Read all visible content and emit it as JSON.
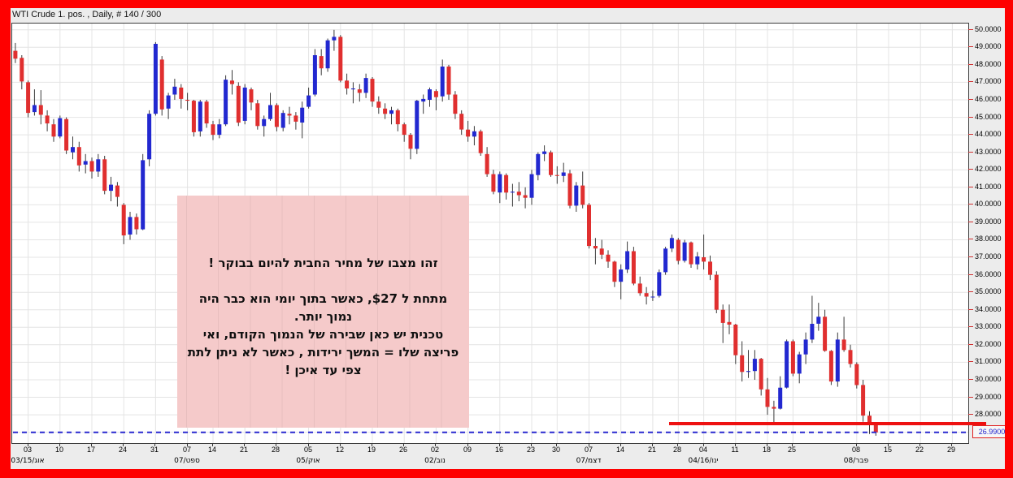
{
  "window": {
    "title": "WTI Crude 1. pos. , Daily, # 140 / 300"
  },
  "colors": {
    "frame_red": "#fe0000",
    "panel_bg": "#ececec",
    "plot_bg": "#ffffff",
    "grid": "#e4e4e4",
    "up_candle": "#2228d0",
    "down_candle": "#e02f2f",
    "wick": "#3a3a3a",
    "support_line": "#ee1111",
    "current_price_line": "#2a2ad0",
    "current_price_text": "#2222cc",
    "annotation_bg": "#f5caca"
  },
  "current_price": {
    "label": "26.9900"
  },
  "annotation": {
    "lines": [
      "זהו מצבו של מחיר החבית להיום בבוקר !",
      "",
      "מתחת ל $27, כאשר בתוך יומי הוא כבר היה",
      "נמוך יותר.",
      "טכנית יש כאן שבירה של הנמוך הקודם, ואי",
      "פריצה שלו = המשך ירידות , כאשר לא ניתן לתת",
      "צפי עד איכן !"
    ]
  },
  "chart_data": {
    "type": "candlestick",
    "title": "WTI Crude 1. pos. , Daily",
    "timeframe": "Daily",
    "ylim": [
      26.38,
      50.36
    ],
    "grid": true,
    "slots_total": 150,
    "price_tick_labels": [
      "50.0000",
      "49.0000",
      "48.0000",
      "47.0000",
      "46.0000",
      "45.0000",
      "44.0000",
      "43.0000",
      "42.0000",
      "41.0000",
      "40.0000",
      "39.0000",
      "38.0000",
      "37.0000",
      "36.0000",
      "35.0000",
      "34.0000",
      "33.0000",
      "32.0000",
      "31.0000",
      "30.0000",
      "29.0000",
      "28.0000"
    ],
    "x_ticks": [
      {
        "label": "03",
        "slot": 2
      },
      {
        "label": "10",
        "slot": 7
      },
      {
        "label": "17",
        "slot": 12
      },
      {
        "label": "24",
        "slot": 17
      },
      {
        "label": "31",
        "slot": 22
      },
      {
        "label": "07",
        "slot": 27
      },
      {
        "label": "14",
        "slot": 31
      },
      {
        "label": "21",
        "slot": 36
      },
      {
        "label": "28",
        "slot": 41
      },
      {
        "label": "05",
        "slot": 46
      },
      {
        "label": "12",
        "slot": 51
      },
      {
        "label": "19",
        "slot": 56
      },
      {
        "label": "26",
        "slot": 61
      },
      {
        "label": "02",
        "slot": 66
      },
      {
        "label": "09",
        "slot": 71
      },
      {
        "label": "16",
        "slot": 76
      },
      {
        "label": "23",
        "slot": 81
      },
      {
        "label": "30",
        "slot": 85
      },
      {
        "label": "07",
        "slot": 90
      },
      {
        "label": "14",
        "slot": 95
      },
      {
        "label": "21",
        "slot": 100
      },
      {
        "label": "28",
        "slot": 104
      },
      {
        "label": "04",
        "slot": 108
      },
      {
        "label": "11",
        "slot": 113
      },
      {
        "label": "18",
        "slot": 118
      },
      {
        "label": "25",
        "slot": 122
      },
      {
        "label": "08",
        "slot": 132
      },
      {
        "label": "15",
        "slot": 137
      },
      {
        "label": "22",
        "slot": 142
      },
      {
        "label": "29",
        "slot": 147
      }
    ],
    "month_labels": [
      {
        "label": "03/15/אוג",
        "slot": 2
      },
      {
        "label": "07/ספט",
        "slot": 27
      },
      {
        "label": "05/אוק",
        "slot": 46
      },
      {
        "label": "02/נוב",
        "slot": 66
      },
      {
        "label": "07/דצמ",
        "slot": 90
      },
      {
        "label": "04/16/ינו",
        "slot": 108
      },
      {
        "label": "08/פבר",
        "slot": 132
      }
    ],
    "support_line": {
      "price": 27.45,
      "from_slot": 103,
      "extends_past_plot": true
    },
    "current_price_line": {
      "price": 26.99,
      "style": "dashed"
    },
    "candles": [
      [
        "Jul 30",
        48.8,
        49.25,
        48.1,
        48.35
      ],
      [
        "Jul 31",
        48.4,
        48.55,
        46.6,
        47.05
      ],
      [
        "Aug 03",
        47.0,
        47.1,
        45.0,
        45.25
      ],
      [
        "Aug 04",
        45.3,
        46.6,
        45.1,
        45.7
      ],
      [
        "Aug 05",
        45.7,
        46.55,
        44.6,
        45.15
      ],
      [
        "Aug 06",
        45.1,
        45.4,
        44.2,
        44.65
      ],
      [
        "Aug 07",
        44.6,
        44.9,
        43.6,
        43.9
      ],
      [
        "Aug 10",
        43.9,
        45.1,
        43.8,
        44.95
      ],
      [
        "Aug 11",
        44.9,
        45.0,
        42.9,
        43.1
      ],
      [
        "Aug 12",
        43.0,
        43.9,
        42.6,
        43.3
      ],
      [
        "Aug 13",
        43.3,
        43.6,
        41.9,
        42.25
      ],
      [
        "Aug 14",
        42.3,
        42.9,
        41.8,
        42.5
      ],
      [
        "Aug 17",
        42.5,
        42.7,
        41.5,
        41.9
      ],
      [
        "Aug 18",
        41.9,
        42.9,
        41.6,
        42.6
      ],
      [
        "Aug 19",
        42.6,
        42.8,
        40.6,
        40.8
      ],
      [
        "Aug 20",
        40.8,
        41.6,
        40.2,
        41.15
      ],
      [
        "Aug 21",
        41.1,
        41.3,
        39.9,
        40.45
      ],
      [
        "Aug 24",
        40.0,
        40.1,
        37.75,
        38.25
      ],
      [
        "Aug 25",
        38.3,
        39.6,
        38.0,
        39.3
      ],
      [
        "Aug 26",
        39.3,
        39.5,
        38.3,
        38.6
      ],
      [
        "Aug 27",
        38.6,
        42.9,
        38.55,
        42.55
      ],
      [
        "Aug 28",
        42.6,
        45.4,
        42.2,
        45.2
      ],
      [
        "Aug 31",
        45.2,
        49.3,
        45.1,
        49.2
      ],
      [
        "Sep 01",
        48.3,
        48.5,
        45.1,
        45.45
      ],
      [
        "Sep 02",
        45.5,
        46.4,
        44.9,
        46.25
      ],
      [
        "Sep 03",
        46.3,
        47.2,
        46.0,
        46.75
      ],
      [
        "Sep 04",
        46.7,
        46.9,
        45.5,
        46.05
      ],
      [
        "Sep 08",
        46.0,
        46.4,
        45.4,
        45.95
      ],
      [
        "Sep 09",
        45.95,
        46.0,
        43.9,
        44.15
      ],
      [
        "Sep 10",
        44.2,
        46.0,
        43.9,
        45.9
      ],
      [
        "Sep 11",
        45.9,
        46.0,
        44.4,
        44.65
      ],
      [
        "Sep 14",
        44.6,
        44.8,
        43.7,
        44.0
      ],
      [
        "Sep 15",
        44.0,
        44.9,
        43.8,
        44.6
      ],
      [
        "Sep 16",
        44.6,
        47.4,
        44.5,
        47.15
      ],
      [
        "Sep 17",
        47.1,
        47.7,
        46.3,
        46.9
      ],
      [
        "Sep 18",
        46.8,
        47.0,
        44.5,
        44.7
      ],
      [
        "Sep 21",
        44.8,
        46.9,
        44.6,
        46.7
      ],
      [
        "Sep 22",
        46.6,
        46.7,
        45.4,
        45.85
      ],
      [
        "Sep 23",
        45.8,
        46.0,
        44.3,
        44.5
      ],
      [
        "Sep 24",
        44.5,
        45.1,
        43.9,
        44.9
      ],
      [
        "Sep 25",
        44.9,
        46.4,
        44.8,
        45.7
      ],
      [
        "Sep 28",
        45.7,
        45.8,
        44.2,
        44.45
      ],
      [
        "Sep 29",
        44.4,
        45.4,
        44.2,
        45.25
      ],
      [
        "Sep 30",
        45.2,
        45.6,
        44.6,
        45.1
      ],
      [
        "Oct 01",
        45.1,
        45.3,
        44.3,
        44.75
      ],
      [
        "Oct 02",
        44.7,
        45.9,
        43.8,
        45.55
      ],
      [
        "Oct 05",
        45.6,
        46.7,
        45.5,
        46.25
      ],
      [
        "Oct 06",
        46.3,
        48.9,
        46.2,
        48.55
      ],
      [
        "Oct 07",
        48.5,
        48.9,
        47.4,
        47.8
      ],
      [
        "Oct 08",
        47.8,
        49.5,
        47.6,
        49.4
      ],
      [
        "Oct 09",
        49.4,
        50.0,
        48.8,
        49.6
      ],
      [
        "Oct 12",
        49.6,
        49.7,
        47.0,
        47.1
      ],
      [
        "Oct 13",
        47.1,
        47.5,
        46.3,
        46.65
      ],
      [
        "Oct 14",
        46.6,
        47.0,
        45.8,
        46.65
      ],
      [
        "Oct 15",
        46.6,
        46.9,
        45.9,
        46.4
      ],
      [
        "Oct 16",
        46.4,
        47.5,
        46.1,
        47.25
      ],
      [
        "Oct 19",
        47.2,
        47.3,
        45.6,
        45.9
      ],
      [
        "Oct 20",
        45.9,
        46.2,
        45.2,
        45.55
      ],
      [
        "Oct 21",
        45.5,
        45.8,
        44.9,
        45.2
      ],
      [
        "Oct 22",
        45.2,
        45.6,
        44.6,
        45.4
      ],
      [
        "Oct 23",
        45.4,
        45.5,
        44.2,
        44.6
      ],
      [
        "Oct 26",
        44.6,
        44.7,
        43.6,
        44.0
      ],
      [
        "Oct 27",
        44.0,
        44.1,
        42.6,
        43.2
      ],
      [
        "Oct 28",
        43.2,
        46.0,
        42.9,
        45.95
      ],
      [
        "Oct 29",
        45.9,
        46.3,
        45.2,
        46.05
      ],
      [
        "Oct 30",
        46.0,
        46.7,
        45.6,
        46.6
      ],
      [
        "Nov 02",
        46.5,
        46.6,
        45.4,
        46.15
      ],
      [
        "Nov 03",
        46.2,
        48.3,
        45.9,
        47.9
      ],
      [
        "Nov 04",
        47.9,
        48.0,
        46.0,
        46.3
      ],
      [
        "Nov 05",
        46.3,
        46.5,
        44.9,
        45.2
      ],
      [
        "Nov 06",
        45.2,
        45.4,
        44.0,
        44.3
      ],
      [
        "Nov 09",
        44.3,
        44.8,
        43.6,
        43.9
      ],
      [
        "Nov 10",
        43.9,
        44.5,
        43.4,
        44.2
      ],
      [
        "Nov 11",
        44.2,
        44.3,
        42.8,
        42.95
      ],
      [
        "Nov 12",
        42.9,
        43.3,
        41.6,
        41.75
      ],
      [
        "Nov 13",
        41.75,
        42.0,
        40.6,
        40.75
      ],
      [
        "Nov 16",
        40.7,
        41.9,
        40.1,
        41.75
      ],
      [
        "Nov 17",
        41.7,
        41.8,
        40.3,
        40.7
      ],
      [
        "Nov 18",
        40.7,
        41.2,
        39.9,
        40.75
      ],
      [
        "Nov 19",
        40.75,
        41.3,
        40.2,
        40.55
      ],
      [
        "Nov 20",
        40.55,
        41.0,
        39.8,
        40.4
      ],
      [
        "Nov 23",
        40.4,
        42.0,
        40.0,
        41.75
      ],
      [
        "Nov 24",
        41.7,
        43.0,
        41.4,
        42.9
      ],
      [
        "Nov 25",
        42.9,
        43.4,
        42.5,
        43.05
      ],
      [
        "Nov 27",
        43.0,
        43.1,
        41.6,
        41.7
      ],
      [
        "Nov 30",
        41.7,
        42.2,
        41.2,
        41.65
      ],
      [
        "Dec 01",
        41.65,
        42.4,
        41.3,
        41.85
      ],
      [
        "Dec 02",
        41.8,
        42.0,
        39.8,
        39.95
      ],
      [
        "Dec 03",
        39.95,
        41.3,
        39.6,
        41.1
      ],
      [
        "Dec 04",
        41.1,
        41.9,
        39.8,
        40.0
      ],
      [
        "Dec 07",
        40.0,
        40.1,
        37.5,
        37.65
      ],
      [
        "Dec 08",
        37.65,
        38.1,
        36.6,
        37.5
      ],
      [
        "Dec 09",
        37.5,
        38.0,
        36.9,
        37.15
      ],
      [
        "Dec 10",
        37.15,
        37.4,
        36.4,
        36.75
      ],
      [
        "Dec 11",
        36.75,
        36.8,
        35.3,
        35.6
      ],
      [
        "Dec 14",
        35.6,
        36.6,
        34.6,
        36.3
      ],
      [
        "Dec 15",
        36.3,
        37.9,
        36.1,
        37.35
      ],
      [
        "Dec 16",
        37.35,
        37.6,
        35.4,
        35.5
      ],
      [
        "Dec 17",
        35.5,
        35.9,
        34.8,
        34.95
      ],
      [
        "Dec 18",
        34.95,
        35.3,
        34.3,
        34.75
      ],
      [
        "Dec 21",
        34.75,
        35.1,
        34.5,
        34.75
      ],
      [
        "Dec 22",
        34.8,
        36.3,
        34.7,
        36.15
      ],
      [
        "Dec 23",
        36.15,
        37.6,
        36.0,
        37.5
      ],
      [
        "Dec 24",
        37.5,
        38.3,
        37.3,
        38.1
      ],
      [
        "Dec 28",
        38.0,
        38.1,
        36.6,
        36.8
      ],
      [
        "Dec 29",
        36.8,
        38.0,
        36.7,
        37.85
      ],
      [
        "Dec 30",
        37.85,
        37.9,
        36.4,
        36.6
      ],
      [
        "Dec 31",
        36.6,
        37.3,
        36.3,
        37.05
      ],
      [
        "Jan 04",
        37.0,
        38.3,
        36.3,
        36.75
      ],
      [
        "Jan 05",
        36.75,
        37.1,
        35.7,
        36.0
      ],
      [
        "Jan 06",
        36.0,
        36.2,
        33.8,
        34.0
      ],
      [
        "Jan 07",
        34.0,
        34.3,
        32.1,
        33.25
      ],
      [
        "Jan 08",
        33.3,
        34.3,
        32.6,
        33.15
      ],
      [
        "Jan 11",
        33.15,
        33.2,
        30.9,
        31.4
      ],
      [
        "Jan 12",
        31.4,
        32.2,
        29.9,
        30.45
      ],
      [
        "Jan 13",
        30.45,
        31.7,
        30.1,
        30.5
      ],
      [
        "Jan 14",
        30.5,
        31.7,
        30.0,
        31.2
      ],
      [
        "Jan 15",
        31.2,
        31.25,
        29.1,
        29.45
      ],
      [
        "Jan 19",
        29.45,
        30.1,
        28.0,
        28.45
      ],
      [
        "Jan 20",
        28.45,
        28.8,
        27.56,
        28.35
      ],
      [
        "Jan 21",
        28.35,
        30.2,
        28.3,
        29.55
      ],
      [
        "Jan 22",
        29.55,
        32.3,
        29.5,
        32.2
      ],
      [
        "Jan 25",
        32.2,
        32.3,
        30.2,
        30.35
      ],
      [
        "Jan 26",
        30.35,
        31.6,
        29.8,
        31.45
      ],
      [
        "Jan 27",
        31.45,
        32.7,
        30.9,
        32.3
      ],
      [
        "Jan 28",
        32.3,
        34.8,
        32.1,
        33.2
      ],
      [
        "Jan 29",
        33.2,
        34.4,
        32.8,
        33.6
      ],
      [
        "Feb 01",
        33.6,
        34.0,
        31.6,
        31.65
      ],
      [
        "Feb 02",
        31.65,
        31.7,
        29.7,
        29.9
      ],
      [
        "Feb 03",
        29.9,
        32.7,
        29.6,
        32.3
      ],
      [
        "Feb 04",
        32.3,
        33.6,
        31.6,
        31.7
      ],
      [
        "Feb 05",
        31.7,
        32.0,
        30.7,
        30.9
      ],
      [
        "Feb 08",
        30.9,
        31.0,
        29.5,
        29.7
      ],
      [
        "Feb 09",
        29.7,
        30.0,
        27.6,
        27.95
      ],
      [
        "Feb 10",
        27.95,
        28.2,
        26.9,
        27.45
      ],
      [
        "Feb 11",
        27.45,
        27.5,
        26.8,
        26.99
      ]
    ]
  }
}
